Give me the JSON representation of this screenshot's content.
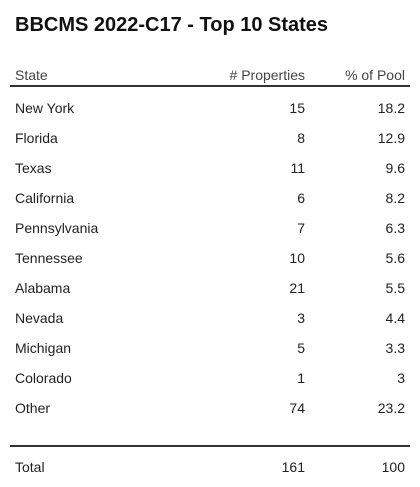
{
  "title": "BBCMS 2022-C17 - Top 10 States",
  "chart_data": {
    "type": "table",
    "columns": [
      "State",
      "# Properties",
      "% of Pool"
    ],
    "rows": [
      {
        "state": "New York",
        "properties": "15",
        "pct": "18.2"
      },
      {
        "state": "Florida",
        "properties": "8",
        "pct": "12.9"
      },
      {
        "state": "Texas",
        "properties": "11",
        "pct": "9.6"
      },
      {
        "state": "California",
        "properties": "6",
        "pct": "8.2"
      },
      {
        "state": "Pennsylvania",
        "properties": "7",
        "pct": "6.3"
      },
      {
        "state": "Tennessee",
        "properties": "10",
        "pct": "5.6"
      },
      {
        "state": "Alabama",
        "properties": "21",
        "pct": "5.5"
      },
      {
        "state": "Nevada",
        "properties": "3",
        "pct": "4.4"
      },
      {
        "state": "Michigan",
        "properties": "5",
        "pct": "3.3"
      },
      {
        "state": "Colorado",
        "properties": "1",
        "pct": "3"
      },
      {
        "state": "Other",
        "properties": "74",
        "pct": "23.2"
      }
    ],
    "total": {
      "label": "Total",
      "properties": "161",
      "pct": "100"
    }
  }
}
